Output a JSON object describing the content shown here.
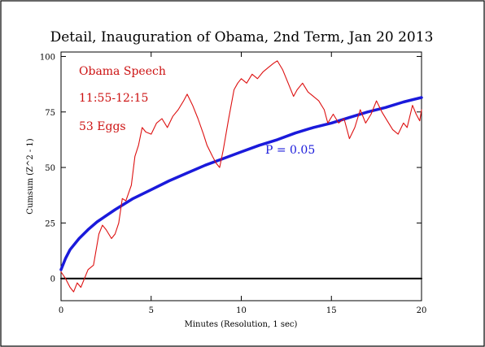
{
  "chart_data": {
    "type": "line",
    "title": "Detail, Inauguration of Obama, 2nd Term, Jan 20 2013",
    "xlabel": "Minutes (Resolution, 1 sec)",
    "ylabel": "Cumsum (Z^2 - 1)",
    "xlim": [
      0,
      20
    ],
    "ylim": [
      -10,
      102
    ],
    "x_ticks": [
      0,
      5,
      10,
      15,
      20
    ],
    "y_ticks": [
      0,
      25,
      50,
      75,
      100
    ],
    "grid": false,
    "annotations": {
      "event": "Obama Speech",
      "time_window": "11:55-12:15",
      "eggs": "53 Eggs",
      "significance": "P = 0.05"
    },
    "colors": {
      "cumsum": "#dd1111",
      "significance": "#1a1adb",
      "zero_line": "#000000"
    },
    "series": [
      {
        "role": "cumsum",
        "x": [
          0,
          0.25,
          0.5,
          0.7,
          0.9,
          1.1,
          1.3,
          1.5,
          1.8,
          2.1,
          2.3,
          2.5,
          2.8,
          3.0,
          3.2,
          3.4,
          3.6,
          3.9,
          4.1,
          4.3,
          4.5,
          4.7,
          5.0,
          5.3,
          5.6,
          5.9,
          6.2,
          6.5,
          6.8,
          7.0,
          7.3,
          7.6,
          7.9,
          8.1,
          8.4,
          8.6,
          8.8,
          9.0,
          9.3,
          9.6,
          9.8,
          10.0,
          10.3,
          10.6,
          10.9,
          11.2,
          11.5,
          11.8,
          12.0,
          12.3,
          12.6,
          12.9,
          13.1,
          13.4,
          13.7,
          14.0,
          14.3,
          14.6,
          14.8,
          15.1,
          15.4,
          15.7,
          16.0,
          16.3,
          16.6,
          16.9,
          17.2,
          17.5,
          17.8,
          18.1,
          18.4,
          18.7,
          19.0,
          19.2,
          19.5,
          19.7,
          19.9,
          20.0
        ],
        "y": [
          3,
          0,
          -4,
          -6,
          -2,
          -4,
          0,
          4,
          6,
          20,
          24,
          22,
          18,
          20,
          25,
          36,
          35,
          42,
          55,
          60,
          68,
          66,
          65,
          70,
          72,
          68,
          73,
          76,
          80,
          83,
          78,
          72,
          65,
          60,
          55,
          52,
          50,
          58,
          72,
          85,
          88,
          90,
          88,
          92,
          90,
          93,
          95,
          97,
          98,
          94,
          88,
          82,
          85,
          88,
          84,
          82,
          80,
          76,
          70,
          74,
          70,
          72,
          63,
          68,
          76,
          70,
          74,
          80,
          75,
          71,
          67,
          65,
          70,
          68,
          78,
          74,
          71,
          76
        ]
      },
      {
        "role": "significance",
        "name": "P = 0.05",
        "x": [
          0,
          0.25,
          0.5,
          1,
          1.5,
          2,
          3,
          4,
          5,
          6,
          7,
          8,
          9,
          10,
          11,
          12,
          13,
          14,
          15,
          16,
          17,
          18,
          19,
          20
        ],
        "y": [
          4,
          9,
          13,
          18,
          22,
          25.5,
          31,
          36,
          40,
          44,
          47.5,
          51,
          54,
          57,
          60,
          62.5,
          65.5,
          68,
          70,
          72.5,
          75,
          77,
          79.5,
          81.5
        ]
      },
      {
        "role": "zero",
        "x": [
          0,
          20
        ],
        "y": [
          0,
          0
        ]
      }
    ]
  }
}
